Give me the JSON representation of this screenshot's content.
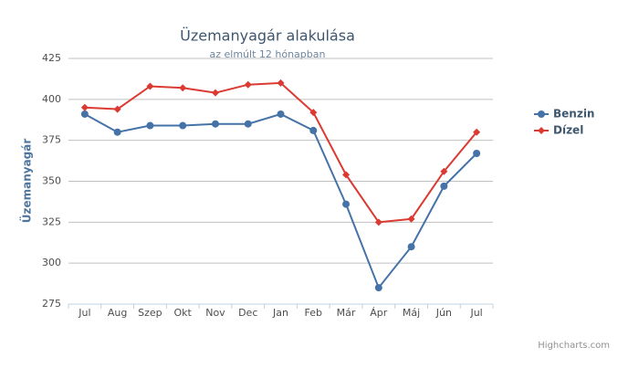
{
  "chart_data": {
    "type": "line",
    "title": "Üzemanyagár alakulása",
    "subtitle": "az elmúlt 12 hónapban",
    "y_label": "Üzemanyagár",
    "categories": [
      "Jul",
      "Aug",
      "Szep",
      "Okt",
      "Nov",
      "Dec",
      "Jan",
      "Feb",
      "Már",
      "Ápr",
      "Máj",
      "Jún",
      "Jul"
    ],
    "series": [
      {
        "name": "Benzin",
        "color": "#4572a7",
        "marker": "circle",
        "values": [
          391,
          380,
          384,
          384,
          385,
          385,
          391,
          381,
          336,
          285,
          310,
          347,
          367
        ]
      },
      {
        "name": "Dízel",
        "color": "#db3a33",
        "marker": "diamond",
        "values": [
          395,
          394,
          408,
          407,
          404,
          409,
          410,
          392,
          354,
          325,
          327,
          356,
          380
        ]
      }
    ],
    "ylim": [
      275,
      425
    ],
    "yticks": [
      275,
      300,
      325,
      350,
      375,
      400,
      425
    ],
    "grid": true,
    "legend": "right",
    "credits": "Highcharts.com"
  }
}
